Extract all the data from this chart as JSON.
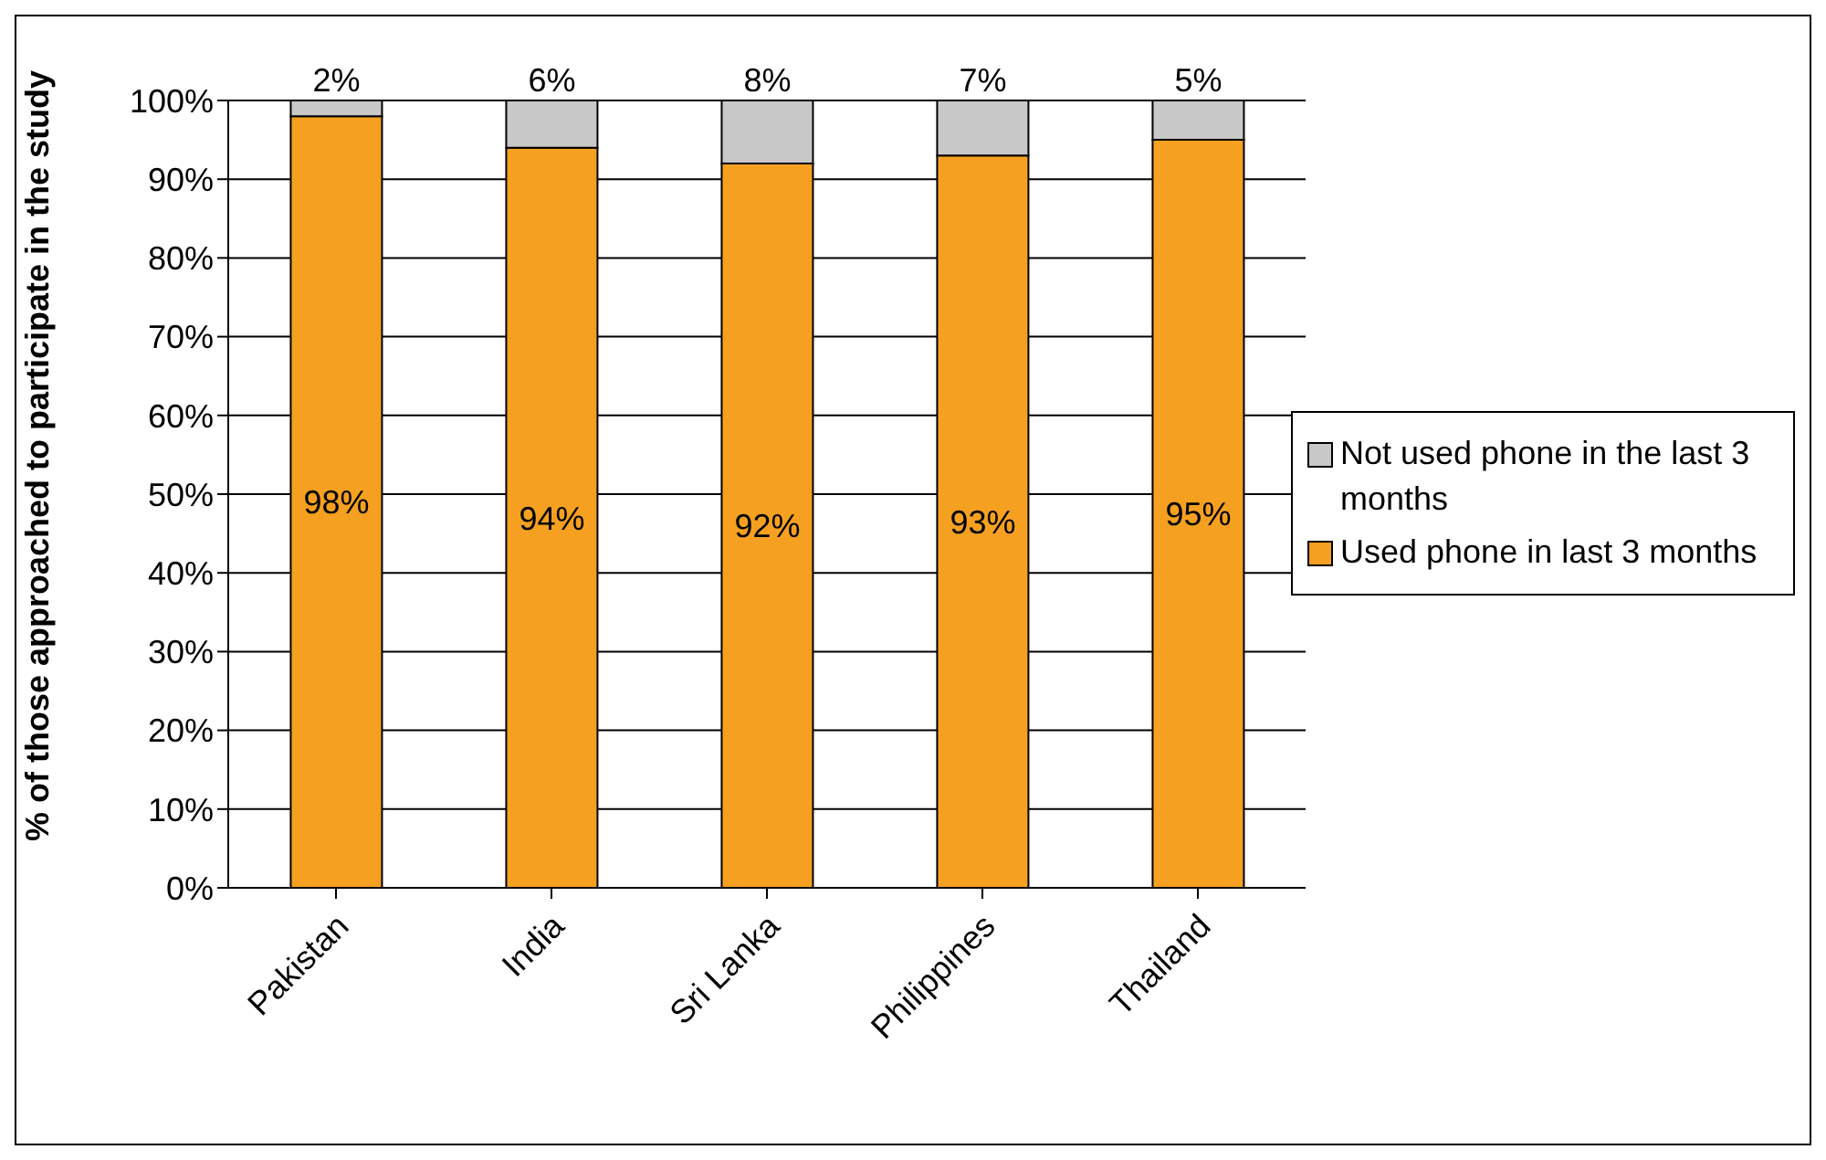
{
  "chart_data": {
    "type": "bar",
    "stacked": true,
    "ylabel": "% of those approached to participate in the study",
    "categories": [
      "Pakistan",
      "India",
      "Sri Lanka",
      "Philippines",
      "Thailand"
    ],
    "series": [
      {
        "name": "Used phone in last 3 months",
        "color": "#f5a020",
        "values": [
          98,
          94,
          92,
          93,
          95
        ],
        "value_labels": [
          "98%",
          "94%",
          "92%",
          "93%",
          "95%"
        ]
      },
      {
        "name": "Not used phone in the last 3 months",
        "color": "#c8c8c8",
        "values": [
          2,
          6,
          8,
          7,
          5
        ],
        "value_labels": [
          "2%",
          "6%",
          "8%",
          "7%",
          "5%"
        ]
      }
    ],
    "ylim": [
      0,
      100
    ],
    "yticks": [
      {
        "value": 0,
        "label": "0%"
      },
      {
        "value": 10,
        "label": "10%"
      },
      {
        "value": 20,
        "label": "20%"
      },
      {
        "value": 30,
        "label": "30%"
      },
      {
        "value": 40,
        "label": "40%"
      },
      {
        "value": 50,
        "label": "50%"
      },
      {
        "value": 60,
        "label": "60%"
      },
      {
        "value": 70,
        "label": "70%"
      },
      {
        "value": 80,
        "label": "80%"
      },
      {
        "value": 90,
        "label": "90%"
      },
      {
        "value": 100,
        "label": "100%"
      }
    ],
    "grid": "y",
    "legend": "right"
  }
}
